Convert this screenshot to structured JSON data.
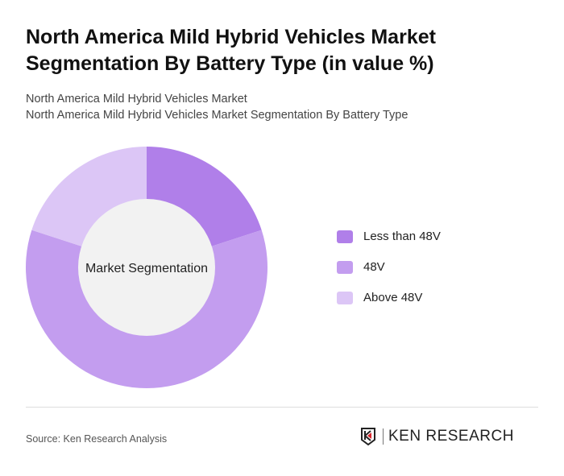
{
  "title": "North America Mild Hybrid Vehicles Market Segmentation By Battery Type (in value %)",
  "subtitle1": "North America Mild Hybrid Vehicles Market",
  "subtitle2": "North America Mild Hybrid Vehicles Market Segmentation By Battery Type",
  "chart_data": {
    "type": "pie",
    "donut": true,
    "center_label": "Market Segmentation",
    "categories": [
      "Less than 48V",
      "48V",
      "Above 48V"
    ],
    "values": [
      20,
      60,
      20
    ],
    "colors": [
      "#b07fe9",
      "#c39def",
      "#dcc6f6"
    ],
    "legend_position": "right"
  },
  "footer": {
    "source": "Source: Ken Research Analysis",
    "logo": "KEN RESEARCH"
  }
}
